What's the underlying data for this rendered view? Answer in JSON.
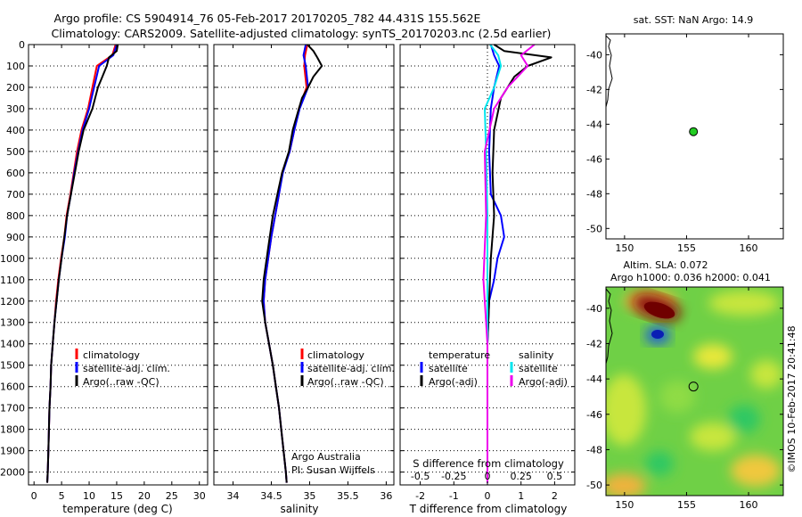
{
  "header": {
    "title_line1": "Argo profile: CS 5904914_76 05-Feb-2017 20170205_782 44.431S 155.562E",
    "title_line2": "Climatology: CARS2009. Satellite-adjusted climatology: synTS_20170203.nc (2.5d earlier)"
  },
  "credits": {
    "org": "Argo Australia",
    "pi": "PI: Susan Wijffels",
    "stamp": "©IMOS 10-Feb-2017 20:41:48"
  },
  "colors": {
    "climatology": "#ff0000",
    "satellite": "#0000ff",
    "argo": "#000000",
    "sal_satellite": "#00e5ee",
    "sal_argo": "#ee00ee",
    "coast": "#000000",
    "float_marker": "#22cc22"
  },
  "chart_data": [
    {
      "id": "temperature",
      "type": "line",
      "xlabel": "temperature (deg C)",
      "ylabel": "",
      "xlim": [
        -1,
        31.5
      ],
      "ylim": [
        2060,
        0
      ],
      "y_inverted": true,
      "xticks": [
        0,
        5,
        10,
        15,
        20,
        25,
        30
      ],
      "yticks": [
        0,
        100,
        200,
        300,
        400,
        500,
        600,
        700,
        800,
        900,
        1000,
        1100,
        1200,
        1300,
        1400,
        1500,
        1600,
        1700,
        1800,
        1900,
        2000
      ],
      "legend": {
        "placement": "center-left",
        "entries": [
          "climatology",
          "satellite-adj. clim.",
          "Argo(..raw -QC)"
        ]
      },
      "series": [
        {
          "name": "climatology",
          "color": "#ff0000",
          "points": [
            [
              14.8,
              0
            ],
            [
              14.2,
              50
            ],
            [
              11.4,
              100
            ],
            [
              10.6,
              200
            ],
            [
              9.8,
              300
            ],
            [
              8.6,
              400
            ],
            [
              7.8,
              500
            ],
            [
              7.2,
              600
            ],
            [
              6.6,
              700
            ],
            [
              5.9,
              800
            ],
            [
              5.5,
              900
            ],
            [
              4.9,
              1000
            ],
            [
              4.4,
              1100
            ],
            [
              4.0,
              1200
            ],
            [
              3.7,
              1300
            ],
            [
              3.4,
              1400
            ],
            [
              3.1,
              1500
            ],
            [
              3.0,
              1600
            ],
            [
              2.8,
              1700
            ],
            [
              2.7,
              1800
            ],
            [
              2.6,
              1900
            ],
            [
              2.5,
              2000
            ],
            [
              2.4,
              2050
            ]
          ]
        },
        {
          "name": "satellite-adj. clim.",
          "color": "#0000ff",
          "points": [
            [
              15.0,
              0
            ],
            [
              14.4,
              50
            ],
            [
              11.8,
              100
            ],
            [
              10.9,
              200
            ],
            [
              10.0,
              300
            ],
            [
              8.8,
              400
            ],
            [
              8.0,
              500
            ],
            [
              7.3,
              600
            ],
            [
              6.7,
              700
            ],
            [
              6.0,
              800
            ],
            [
              5.6,
              900
            ],
            [
              5.0,
              1000
            ],
            [
              4.5,
              1100
            ],
            [
              4.1,
              1200
            ],
            [
              3.7,
              1300
            ],
            [
              3.4,
              1400
            ],
            [
              3.1,
              1500
            ],
            [
              3.0,
              1600
            ],
            [
              2.8,
              1700
            ],
            [
              2.7,
              1800
            ],
            [
              2.6,
              1900
            ],
            [
              2.5,
              2000
            ],
            [
              2.4,
              2050
            ]
          ]
        },
        {
          "name": "Argo(..raw -QC)",
          "color": "#000000",
          "points": [
            [
              15.2,
              0
            ],
            [
              15.0,
              30
            ],
            [
              13.6,
              60
            ],
            [
              13.2,
              100
            ],
            [
              12.4,
              150
            ],
            [
              11.6,
              200
            ],
            [
              10.6,
              300
            ],
            [
              9.0,
              400
            ],
            [
              8.1,
              500
            ],
            [
              7.4,
              600
            ],
            [
              6.7,
              700
            ],
            [
              6.0,
              800
            ],
            [
              5.5,
              900
            ],
            [
              5.0,
              1000
            ],
            [
              4.5,
              1100
            ],
            [
              4.1,
              1200
            ],
            [
              3.7,
              1300
            ],
            [
              3.4,
              1400
            ],
            [
              3.1,
              1500
            ],
            [
              3.0,
              1600
            ],
            [
              2.8,
              1700
            ],
            [
              2.7,
              1800
            ],
            [
              2.6,
              1900
            ],
            [
              2.5,
              2000
            ],
            [
              2.4,
              2050
            ]
          ]
        }
      ]
    },
    {
      "id": "salinity",
      "type": "line",
      "xlabel": "salinity",
      "ylabel": "",
      "xlim": [
        33.75,
        36.1
      ],
      "ylim": [
        2060,
        0
      ],
      "y_inverted": true,
      "xticks": [
        34,
        34.5,
        35,
        35.5,
        36
      ],
      "legend": {
        "placement": "center-right",
        "entries": [
          "climatology",
          "satellite-adj. clim.",
          "Argo(..raw -QC)"
        ]
      },
      "series": [
        {
          "name": "climatology",
          "color": "#ff0000",
          "points": [
            [
              34.97,
              0
            ],
            [
              34.94,
              50
            ],
            [
              34.93,
              100
            ],
            [
              34.96,
              200
            ],
            [
              34.86,
              300
            ],
            [
              34.8,
              400
            ],
            [
              34.74,
              500
            ],
            [
              34.64,
              600
            ],
            [
              34.6,
              700
            ],
            [
              34.55,
              800
            ],
            [
              34.5,
              900
            ],
            [
              34.46,
              1000
            ],
            [
              34.42,
              1100
            ],
            [
              34.4,
              1200
            ],
            [
              34.42,
              1300
            ],
            [
              34.47,
              1400
            ],
            [
              34.52,
              1500
            ],
            [
              34.56,
              1600
            ],
            [
              34.6,
              1700
            ],
            [
              34.63,
              1800
            ],
            [
              34.66,
              1900
            ],
            [
              34.69,
              2000
            ],
            [
              34.7,
              2050
            ]
          ]
        },
        {
          "name": "satellite-adj. clim.",
          "color": "#0000ff",
          "points": [
            [
              34.95,
              0
            ],
            [
              34.92,
              50
            ],
            [
              34.95,
              100
            ],
            [
              34.98,
              200
            ],
            [
              34.87,
              300
            ],
            [
              34.8,
              400
            ],
            [
              34.74,
              500
            ],
            [
              34.65,
              600
            ],
            [
              34.6,
              700
            ],
            [
              34.55,
              800
            ],
            [
              34.5,
              900
            ],
            [
              34.46,
              1000
            ],
            [
              34.42,
              1100
            ],
            [
              34.4,
              1200
            ],
            [
              34.42,
              1300
            ],
            [
              34.47,
              1400
            ],
            [
              34.52,
              1500
            ],
            [
              34.56,
              1600
            ],
            [
              34.6,
              1700
            ],
            [
              34.63,
              1800
            ],
            [
              34.66,
              1900
            ],
            [
              34.69,
              2000
            ],
            [
              34.7,
              2050
            ]
          ]
        },
        {
          "name": "Argo(..raw -QC)",
          "color": "#000000",
          "points": [
            [
              34.97,
              0
            ],
            [
              35.05,
              30
            ],
            [
              35.1,
              60
            ],
            [
              35.16,
              100
            ],
            [
              35.05,
              150
            ],
            [
              34.98,
              200
            ],
            [
              34.9,
              250
            ],
            [
              34.86,
              300
            ],
            [
              34.78,
              400
            ],
            [
              34.73,
              500
            ],
            [
              34.64,
              600
            ],
            [
              34.58,
              700
            ],
            [
              34.52,
              800
            ],
            [
              34.48,
              900
            ],
            [
              34.44,
              1000
            ],
            [
              34.4,
              1100
            ],
            [
              34.38,
              1200
            ],
            [
              34.42,
              1300
            ],
            [
              34.47,
              1400
            ],
            [
              34.52,
              1500
            ],
            [
              34.56,
              1600
            ],
            [
              34.6,
              1700
            ],
            [
              34.63,
              1800
            ],
            [
              34.66,
              1900
            ],
            [
              34.69,
              2000
            ],
            [
              34.7,
              2050
            ]
          ]
        }
      ]
    },
    {
      "id": "difference",
      "type": "line",
      "xlabel": "T difference from climatology",
      "x2label": "S difference from climatology",
      "ylabel": "",
      "xlim": [
        -2.6,
        2.6
      ],
      "ylim": [
        2060,
        0
      ],
      "y_inverted": true,
      "xticks": [
        -2,
        -1,
        0,
        1,
        2
      ],
      "xticks_top": [
        -0.5,
        -0.25,
        0,
        0.25,
        0.5
      ],
      "legend": {
        "placement": "center",
        "groups": [
          {
            "title": "temperature",
            "entries": [
              "satellite",
              "Argo(-adj)"
            ]
          },
          {
            "title": "salinity",
            "entries": [
              "satellite",
              "Argo(-adj)"
            ]
          }
        ]
      },
      "series": [
        {
          "name": "satellite",
          "group": "temperature",
          "color": "#0000ff",
          "points": [
            [
              0.1,
              0
            ],
            [
              0.2,
              50
            ],
            [
              0.35,
              100
            ],
            [
              0.2,
              200
            ],
            [
              0.1,
              300
            ],
            [
              0.05,
              500
            ],
            [
              0.1,
              700
            ],
            [
              0.4,
              800
            ],
            [
              0.5,
              900
            ],
            [
              0.3,
              1000
            ],
            [
              0.2,
              1100
            ],
            [
              0.05,
              1200
            ],
            [
              0.0,
              1400
            ],
            [
              0.0,
              2050
            ]
          ]
        },
        {
          "name": "Argo(-adj)",
          "group": "temperature",
          "color": "#000000",
          "points": [
            [
              0.2,
              0
            ],
            [
              0.5,
              30
            ],
            [
              1.9,
              60
            ],
            [
              1.2,
              100
            ],
            [
              0.8,
              150
            ],
            [
              0.4,
              250
            ],
            [
              0.2,
              400
            ],
            [
              0.15,
              600
            ],
            [
              0.2,
              800
            ],
            [
              0.1,
              1000
            ],
            [
              0.05,
              1200
            ],
            [
              0.0,
              1400
            ],
            [
              0.0,
              2050
            ]
          ]
        },
        {
          "name": "satellite",
          "group": "salinity",
          "color": "#00e5ee",
          "points": [
            [
              0.02,
              0
            ],
            [
              0.08,
              50
            ],
            [
              0.1,
              100
            ],
            [
              0.05,
              200
            ],
            [
              -0.02,
              300
            ],
            [
              -0.01,
              500
            ],
            [
              0.0,
              800
            ],
            [
              0.0,
              1200
            ],
            [
              0.0,
              2050
            ]
          ]
        },
        {
          "name": "Argo(-adj)",
          "group": "salinity",
          "color": "#ee00ee",
          "points": [
            [
              0.35,
              0
            ],
            [
              0.25,
              50
            ],
            [
              0.3,
              100
            ],
            [
              0.15,
              200
            ],
            [
              0.05,
              300
            ],
            [
              -0.02,
              500
            ],
            [
              -0.01,
              800
            ],
            [
              -0.03,
              1100
            ],
            [
              -0.02,
              1200
            ],
            [
              0.0,
              1400
            ],
            [
              0.0,
              2050
            ]
          ]
        }
      ]
    },
    {
      "id": "sst_map",
      "type": "scatter",
      "title": "sat. SST: NaN Argo: 14.9",
      "xlim": [
        148.5,
        162.8
      ],
      "ylim": [
        -50.6,
        -38.8
      ],
      "xticks": [
        150,
        155,
        160
      ],
      "yticks": [
        -40,
        -42,
        -44,
        -46,
        -48,
        -50
      ],
      "points": [
        [
          155.56,
          -44.43
        ]
      ]
    },
    {
      "id": "sla_map",
      "type": "heatmap",
      "title_line1": "Altim. SLA: 0.072",
      "title_line2": "Argo h1000: 0.036 h2000: 0.041",
      "xlim": [
        148.5,
        162.8
      ],
      "ylim": [
        -50.6,
        -38.8
      ],
      "xticks": [
        150,
        155,
        160
      ],
      "yticks": [
        -40,
        -42,
        -44,
        -46,
        -48,
        -50
      ],
      "points": [
        [
          155.56,
          -44.43
        ]
      ]
    }
  ]
}
